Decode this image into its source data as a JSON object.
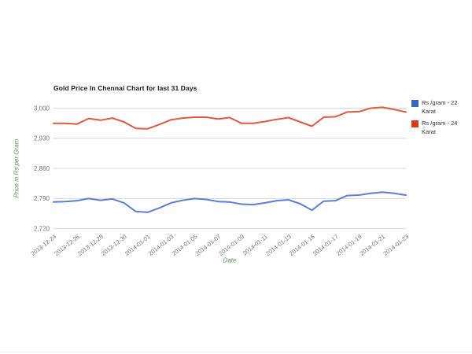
{
  "chart": {
    "title": "Gold Price In Chennai Chart for last 31 Days"
  },
  "chart_data": {
    "type": "line",
    "title": "Gold Price In Chennai Chart for last 31 Days",
    "xlabel": "Date",
    "ylabel": "Price in Rs per Gram",
    "ylim": [
      2720,
      3000
    ],
    "y_ticks": [
      2720,
      2790,
      2860,
      2930,
      3000
    ],
    "grid": "horizontal",
    "legend_position": "right",
    "x_label_every": 2,
    "x": [
      "2013-12-24",
      "2013-12-25",
      "2013-12-26",
      "2013-12-27",
      "2013-12-28",
      "2013-12-29",
      "2013-12-30",
      "2013-12-31",
      "2014-01-01",
      "2014-01-02",
      "2014-01-03",
      "2014-01-04",
      "2014-01-05",
      "2014-01-06",
      "2014-01-07",
      "2014-01-08",
      "2014-01-09",
      "2014-01-10",
      "2014-01-11",
      "2014-01-12",
      "2014-01-13",
      "2014-01-14",
      "2014-01-15",
      "2014-01-16",
      "2014-01-17",
      "2014-01-18",
      "2014-01-19",
      "2014-01-20",
      "2014-01-21",
      "2014-01-22",
      "2014-01-23"
    ],
    "series": [
      {
        "name": "Rs /gram - 22 Karat",
        "color": "#3366cc",
        "line_color": "#5b7fd8",
        "values": [
          2782,
          2783,
          2785,
          2790,
          2786,
          2789,
          2780,
          2760,
          2758,
          2768,
          2780,
          2786,
          2790,
          2788,
          2783,
          2782,
          2777,
          2776,
          2780,
          2785,
          2787,
          2778,
          2763,
          2784,
          2785,
          2797,
          2798,
          2802,
          2805,
          2802,
          2798
        ]
      },
      {
        "name": "Rs /gram - 24 Karat",
        "color": "#dc3912",
        "line_color": "#e25840",
        "values": [
          2965,
          2965,
          2963,
          2976,
          2972,
          2977,
          2968,
          2953,
          2952,
          2962,
          2973,
          2977,
          2979,
          2979,
          2975,
          2978,
          2965,
          2965,
          2969,
          2974,
          2978,
          2968,
          2958,
          2979,
          2980,
          2991,
          2992,
          3000,
          3002,
          2997,
          2991
        ]
      }
    ],
    "colors": {
      "gridline": "#d9d9d9",
      "tick_label": "#757575",
      "axis_title": "#59a04a",
      "title": "#1a1a1a"
    }
  }
}
